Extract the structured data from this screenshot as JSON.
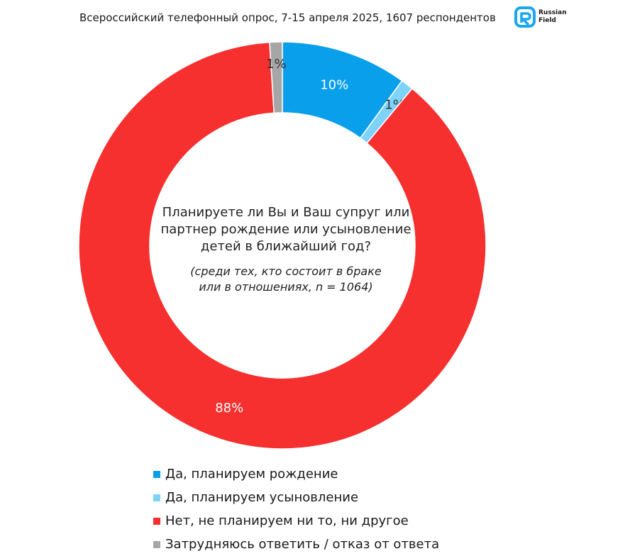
{
  "header": {
    "title": "Всероссийский телефонный опрос, 7-15 апреля 2025, 1607 респондентов"
  },
  "logo": {
    "line1": "Russian",
    "line2": "Field",
    "color": "#1aa7ec"
  },
  "chart_data": {
    "type": "pie",
    "variant": "donut",
    "question": [
      "Планируете ли Вы и Ваш супруг или",
      "партнер рождение или усыновление",
      "детей в ближайший год?"
    ],
    "subtitle": [
      "(среди тех, кто состоит в браке",
      "или в отношениях, n = 1064)"
    ],
    "slices": [
      {
        "name": "Да, планируем рождение",
        "value": 10,
        "label": "10%",
        "color": "#0a9fea",
        "label_color": "#ffffff"
      },
      {
        "name": "Да, планируем усыновление",
        "value": 1,
        "label": "1%",
        "color": "#7fd3fb",
        "label_color": "#333333"
      },
      {
        "name": "Нет, не планируем ни то, ни другое",
        "value": 88,
        "label": "88%",
        "color": "#f5302f",
        "label_color": "#ffffff"
      },
      {
        "name": "Затрудняюсь ответить / отказ от ответа",
        "value": 1,
        "label": "1%",
        "color": "#a6a6a6",
        "label_color": "#333333"
      }
    ],
    "legend_position": "bottom"
  }
}
